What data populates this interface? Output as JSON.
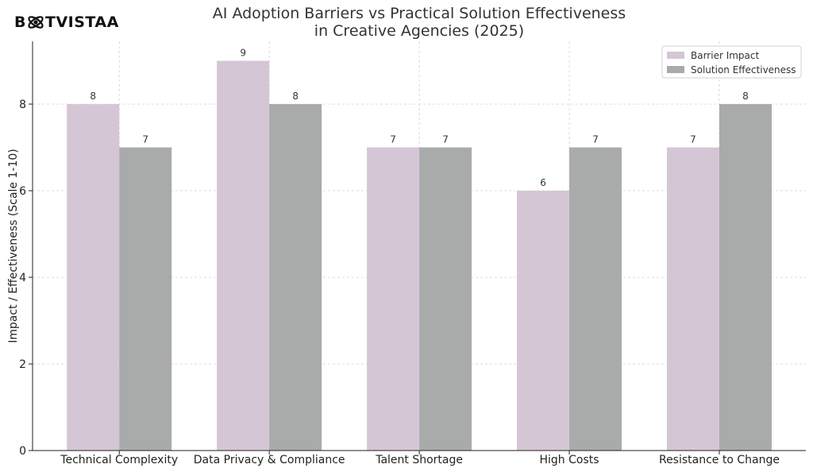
{
  "logo": {
    "text_prefix": "B",
    "text_suffix": "TVISTAA",
    "icon": "atom-logo-icon"
  },
  "chart_data": {
    "type": "bar",
    "title": "AI Adoption Barriers vs Practical Solution Effectiveness\nin Creative Agencies (2025)",
    "xlabel": "",
    "ylabel": "Impact / Effectiveness (Scale 1-10)",
    "categories": [
      "Technical Complexity",
      "Data Privacy & Compliance",
      "Talent Shortage",
      "High Costs",
      "Resistance to Change"
    ],
    "series": [
      {
        "name": "Barrier Impact",
        "values": [
          8,
          9,
          7,
          6,
          7
        ],
        "color": "#d5c6d5"
      },
      {
        "name": "Solution Effectiveness",
        "values": [
          7,
          8,
          7,
          7,
          8
        ],
        "color": "#a9abaa"
      }
    ],
    "ylim": [
      0,
      9.45
    ],
    "yticks": [
      0,
      2,
      4,
      6,
      8
    ],
    "grid": true,
    "legend": "top-right"
  }
}
